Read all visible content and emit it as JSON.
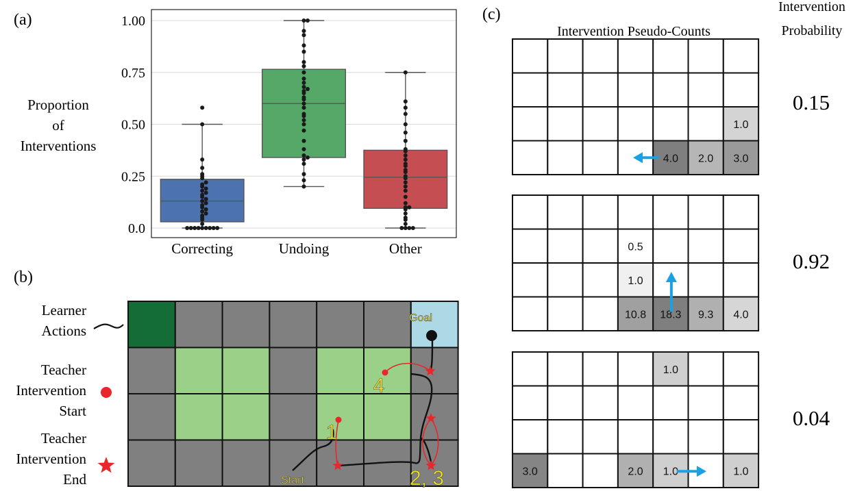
{
  "panel_a": {
    "label": "(a)",
    "ylabel_lines": [
      "Proportion",
      "of",
      "Interventions"
    ],
    "chart_data": {
      "type": "box",
      "categories": [
        "Correcting",
        "Undoing",
        "Other"
      ],
      "yticks": [
        "0.0",
        "0.25",
        "0.50",
        "0.75",
        "1.00"
      ],
      "ylim": [
        0,
        1
      ],
      "grid": true,
      "colors": [
        "#4c72b0",
        "#55a868",
        "#c44e52"
      ],
      "boxes": [
        {
          "name": "Correcting",
          "whislo": 0.0,
          "q1": 0.03,
          "median": 0.13,
          "q3": 0.235,
          "whishi": 0.5
        },
        {
          "name": "Undoing",
          "whislo": 0.2,
          "q1": 0.34,
          "median": 0.6,
          "q3": 0.765,
          "whishi": 1.0
        },
        {
          "name": "Other",
          "whislo": 0.0,
          "q1": 0.095,
          "median": 0.245,
          "q3": 0.375,
          "whishi": 0.75
        }
      ],
      "points": [
        [
          0.0,
          0.0,
          0.0,
          0.0,
          0.0,
          0.0,
          0.0,
          0.0,
          0.0,
          0.02,
          0.04,
          0.05,
          0.06,
          0.07,
          0.08,
          0.09,
          0.1,
          0.11,
          0.12,
          0.13,
          0.14,
          0.15,
          0.16,
          0.17,
          0.18,
          0.19,
          0.2,
          0.21,
          0.22,
          0.24,
          0.25,
          0.26,
          0.29,
          0.33,
          0.5,
          0.58
        ],
        [
          0.2,
          0.23,
          0.26,
          0.31,
          0.33,
          0.34,
          0.35,
          0.38,
          0.42,
          0.47,
          0.5,
          0.52,
          0.54,
          0.55,
          0.58,
          0.6,
          0.62,
          0.63,
          0.65,
          0.66,
          0.67,
          0.68,
          0.7,
          0.72,
          0.75,
          0.78,
          0.8,
          0.85,
          0.88,
          0.93,
          0.95,
          1.0,
          1.0
        ],
        [
          0.0,
          0.0,
          0.0,
          0.0,
          0.02,
          0.04,
          0.05,
          0.07,
          0.09,
          0.1,
          0.1,
          0.12,
          0.15,
          0.18,
          0.2,
          0.22,
          0.24,
          0.25,
          0.27,
          0.28,
          0.3,
          0.31,
          0.33,
          0.35,
          0.37,
          0.38,
          0.42,
          0.46,
          0.5,
          0.55,
          0.58,
          0.61,
          0.75
        ]
      ]
    }
  },
  "panel_b": {
    "label": "(b)",
    "legend": {
      "learner": [
        "Learner",
        "Actions"
      ],
      "start": [
        "Teacher",
        "Intervention",
        "Start"
      ],
      "end": [
        "Teacher",
        "Intervention",
        "End"
      ]
    },
    "goal_label": "Goal",
    "start_label": "Start",
    "intervention_labels": [
      "1",
      "4",
      "2, 3"
    ],
    "colors": {
      "wall": "#808080",
      "dark_green": "#146c36",
      "light_green": "#9ad087",
      "goal": "#add8e6",
      "red": "#e8262b",
      "label": "#f4ea1a"
    },
    "grid": [
      [
        "D",
        "G",
        "G",
        "G",
        "G",
        "G",
        "B"
      ],
      [
        "G",
        "L",
        "L",
        "G",
        "L",
        "L",
        "G"
      ],
      [
        "G",
        "L",
        "L",
        "G",
        "L",
        "L",
        "G"
      ],
      [
        "G",
        "G",
        "G",
        "G",
        "G",
        "G",
        "G"
      ]
    ]
  },
  "panel_c": {
    "label": "(c)",
    "title": "Intervention Pseudo-Counts",
    "prob_header": [
      "Intervention",
      "Probability"
    ],
    "arrow_color": "#1aa1e3",
    "grids": [
      {
        "probability": "0.15",
        "cells": [
          {
            "r": 2,
            "c": 6,
            "v": "1.0",
            "fill": "#d4d4d4"
          },
          {
            "r": 3,
            "c": 4,
            "v": "4.0",
            "fill": "#7f7f7f"
          },
          {
            "r": 3,
            "c": 5,
            "v": "2.0",
            "fill": "#b6b6b6"
          },
          {
            "r": 3,
            "c": 6,
            "v": "3.0",
            "fill": "#9a9a9a"
          }
        ],
        "arrow": "left"
      },
      {
        "probability": "0.92",
        "cells": [
          {
            "r": 1,
            "c": 3,
            "v": "0.5",
            "fill": "#ffffff"
          },
          {
            "r": 2,
            "c": 3,
            "v": "1.0",
            "fill": "#f0f0f0"
          },
          {
            "r": 3,
            "c": 3,
            "v": "10.8",
            "fill": "#a0a0a0"
          },
          {
            "r": 3,
            "c": 4,
            "v": "18.3",
            "fill": "#7f7f7f"
          },
          {
            "r": 3,
            "c": 5,
            "v": "9.3",
            "fill": "#b0b0b0"
          },
          {
            "r": 3,
            "c": 6,
            "v": "4.0",
            "fill": "#d6d6d6"
          }
        ],
        "arrow": "up"
      },
      {
        "probability": "0.04",
        "cells": [
          {
            "r": 0,
            "c": 4,
            "v": "1.0",
            "fill": "#cfcfcf"
          },
          {
            "r": 3,
            "c": 0,
            "v": "3.0",
            "fill": "#858585"
          },
          {
            "r": 3,
            "c": 3,
            "v": "2.0",
            "fill": "#b0b0b0"
          },
          {
            "r": 3,
            "c": 4,
            "v": "1.0",
            "fill": "#cfcfcf"
          },
          {
            "r": 3,
            "c": 6,
            "v": "1.0",
            "fill": "#cfcfcf"
          }
        ],
        "arrow": "right"
      }
    ]
  }
}
